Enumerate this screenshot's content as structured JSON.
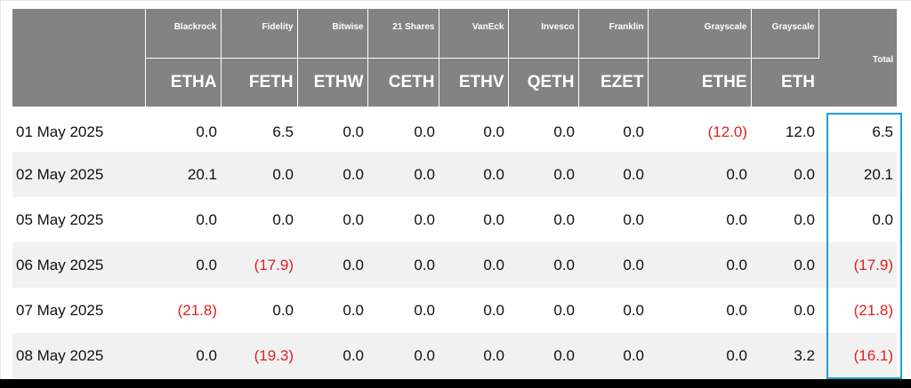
{
  "issuers": [
    "Blackrock",
    "Fidelity",
    "Bitwise",
    "21 Shares",
    "VanEck",
    "Invesco",
    "Franklin",
    "Grayscale",
    "Grayscale"
  ],
  "tickers": [
    "ETHA",
    "FETH",
    "ETHW",
    "CETH",
    "ETHV",
    "QETH",
    "EZET",
    "ETHE",
    "ETH"
  ],
  "total_label": "Total",
  "rows": [
    {
      "date": "01 May 2025",
      "values": [
        "0.0",
        "6.5",
        "0.0",
        "0.0",
        "0.0",
        "0.0",
        "0.0",
        "(12.0)",
        "12.0"
      ],
      "total": "6.5"
    },
    {
      "date": "02 May 2025",
      "values": [
        "20.1",
        "0.0",
        "0.0",
        "0.0",
        "0.0",
        "0.0",
        "0.0",
        "0.0",
        "0.0"
      ],
      "total": "20.1"
    },
    {
      "date": "05 May 2025",
      "values": [
        "0.0",
        "0.0",
        "0.0",
        "0.0",
        "0.0",
        "0.0",
        "0.0",
        "0.0",
        "0.0"
      ],
      "total": "0.0"
    },
    {
      "date": "06 May 2025",
      "values": [
        "0.0",
        "(17.9)",
        "0.0",
        "0.0",
        "0.0",
        "0.0",
        "0.0",
        "0.0",
        "0.0"
      ],
      "total": "(17.9)"
    },
    {
      "date": "07 May 2025",
      "values": [
        "(21.8)",
        "0.0",
        "0.0",
        "0.0",
        "0.0",
        "0.0",
        "0.0",
        "0.0",
        "0.0"
      ],
      "total": "(21.8)"
    },
    {
      "date": "08 May 2025",
      "values": [
        "0.0",
        "(19.3)",
        "0.0",
        "0.0",
        "0.0",
        "0.0",
        "0.0",
        "0.0",
        "3.2"
      ],
      "total": "(16.1)"
    }
  ],
  "colors": {
    "header_bg": "#838383",
    "negative": "#e02020",
    "highlight_border": "#1ea0d6",
    "alt_row": "#f1f1f1"
  }
}
